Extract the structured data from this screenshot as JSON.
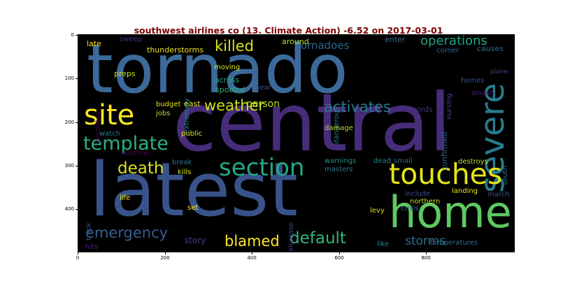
{
  "title": "southwest airlines co (13. Climate Action) -6.52 on 2017-03-01",
  "colors": {
    "title": "#7b0000",
    "background": "#000000"
  },
  "x_ticks": [
    "0",
    "200",
    "400",
    "600",
    "800"
  ],
  "y_ticks": [
    "0",
    "100",
    "200",
    "300",
    "400"
  ],
  "words": [
    {
      "text": "tornado",
      "color": "#3b6a9a"
    },
    {
      "text": "central",
      "color": "#472c7a"
    },
    {
      "text": "latest",
      "color": "#39538a"
    },
    {
      "text": "home",
      "color": "#5ec962"
    },
    {
      "text": "site",
      "color": "#fde725"
    },
    {
      "text": "severe",
      "color": "#287c8e"
    },
    {
      "text": "touches",
      "color": "#e5e419"
    },
    {
      "text": "section",
      "color": "#22a884"
    },
    {
      "text": "template",
      "color": "#2cb17e"
    },
    {
      "text": "weather",
      "color": "#d0e11c"
    },
    {
      "text": "death",
      "color": "#d8e219"
    },
    {
      "text": "activates",
      "color": "#2a788e"
    },
    {
      "text": "default",
      "color": "#34b679"
    },
    {
      "text": "blamed",
      "color": "#fde725"
    },
    {
      "text": "emergency",
      "color": "#355f8d"
    },
    {
      "text": "killed",
      "color": "#d5e21a"
    },
    {
      "text": "operations",
      "color": "#20a486"
    },
    {
      "text": "tornadoes",
      "color": "#31688e"
    },
    {
      "text": "storms",
      "color": "#2e6f8e"
    },
    {
      "text": "person",
      "color": "#bddf26"
    },
    {
      "text": "story",
      "color": "#443983"
    },
    {
      "text": "late",
      "color": "#f4e61e"
    },
    {
      "text": "sweep",
      "color": "#46327e"
    },
    {
      "text": "thunderstorms",
      "color": "#f1e51d"
    },
    {
      "text": "around",
      "color": "#b8de29"
    },
    {
      "text": "enter",
      "color": "#2f6b8e"
    },
    {
      "text": "corner",
      "color": "#31678e"
    },
    {
      "text": "causes",
      "color": "#306a8e"
    },
    {
      "text": "nursing",
      "color": "#3f4788"
    },
    {
      "text": "plane",
      "color": "#433e85"
    },
    {
      "text": "preps",
      "color": "#d2e21b"
    },
    {
      "text": "moving",
      "color": "#d8e219"
    },
    {
      "text": "extremely",
      "color": "#23888e"
    },
    {
      "text": "across",
      "color": "#27ad81"
    },
    {
      "text": "spotted",
      "color": "#2db27d"
    },
    {
      "text": "near",
      "color": "#3c508b"
    },
    {
      "text": "dangerous",
      "color": "#2a788e"
    },
    {
      "text": "homes",
      "color": "#3d4e8a"
    },
    {
      "text": "smash",
      "color": "#482173"
    },
    {
      "text": "predates",
      "color": "#440154"
    },
    {
      "text": "budget",
      "color": "#e2e418"
    },
    {
      "text": "east",
      "color": "#e7e419"
    },
    {
      "text": "jobs",
      "color": "#b5de2b"
    },
    {
      "text": "records",
      "color": "#46307e"
    },
    {
      "text": "confirmed",
      "color": "#33638d"
    },
    {
      "text": "watch",
      "color": "#287c8e"
    },
    {
      "text": "public",
      "color": "#e2e418"
    },
    {
      "text": "damage",
      "color": "#b0dd2f"
    },
    {
      "text": "south",
      "color": "#2c728e"
    },
    {
      "text": "wildfire",
      "color": "#450559"
    },
    {
      "text": "break",
      "color": "#2d718e"
    },
    {
      "text": "warnings",
      "color": "#21908d"
    },
    {
      "text": "dead",
      "color": "#24868e"
    },
    {
      "text": "small",
      "color": "#32658e"
    },
    {
      "text": "destroys",
      "color": "#bade28"
    },
    {
      "text": "kills",
      "color": "#d0e11c"
    },
    {
      "text": "masters",
      "color": "#2a788e"
    },
    {
      "text": "track",
      "color": "#3b528b"
    },
    {
      "text": "life",
      "color": "#e0e318"
    },
    {
      "text": "increase",
      "color": "#3f4889"
    },
    {
      "text": "include",
      "color": "#3e4c8a"
    },
    {
      "text": "landing",
      "color": "#e5e419"
    },
    {
      "text": "march",
      "color": "#3c4f8a"
    },
    {
      "text": "northern",
      "color": "#c2df23"
    },
    {
      "text": "crisis",
      "color": "#2e6e8e"
    },
    {
      "text": "set",
      "color": "#fde725"
    },
    {
      "text": "levy",
      "color": "#d5e21a"
    },
    {
      "text": "like",
      "color": "#26818e"
    },
    {
      "text": "hits",
      "color": "#482475"
    },
    {
      "text": "temperatures",
      "color": "#2d708e"
    }
  ]
}
